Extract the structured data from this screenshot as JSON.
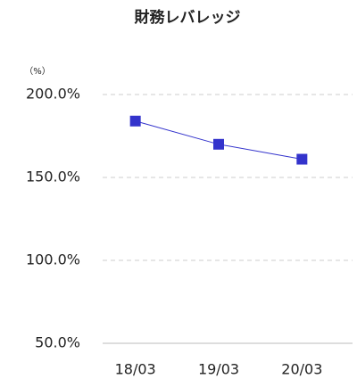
{
  "chart_data": {
    "type": "line",
    "title": "財務レバレッジ",
    "unit_label": "（%）",
    "categories": [
      "18/03",
      "19/03",
      "20/03"
    ],
    "series": [
      {
        "name": "財務レバレッジ",
        "color": "#3333cc",
        "values": [
          184,
          170,
          161
        ]
      }
    ],
    "ylim": [
      50,
      200
    ],
    "yticks": [
      {
        "value": 50,
        "label": "50.0%"
      },
      {
        "value": 100,
        "label": "100.0%"
      },
      {
        "value": 150,
        "label": "150.0%"
      },
      {
        "value": 200,
        "label": "200.0%"
      }
    ],
    "grid": true
  }
}
